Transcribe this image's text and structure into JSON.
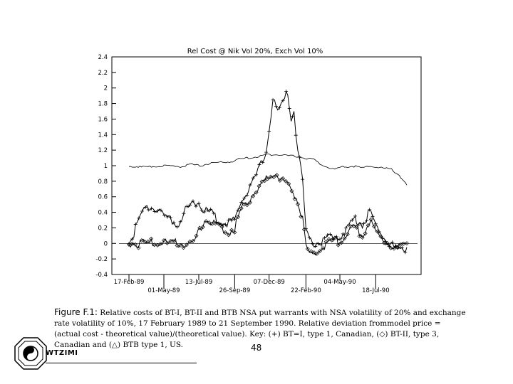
{
  "chart_data": {
    "type": "line",
    "title": "Rel Cost @ Nik Vol 20%, Exch Vol 10%",
    "ylim": [
      -0.4,
      2.4
    ],
    "yticks": [
      "2.4",
      "2.2",
      "2",
      "1.8",
      "1.6",
      "1.4",
      "1.2",
      "1",
      "0.8",
      "0.6",
      "0.4",
      "0.2",
      "0",
      "-0.2",
      "-0.4"
    ],
    "ytick_values": [
      2.4,
      2.2,
      2.0,
      1.8,
      1.6,
      1.4,
      1.2,
      1.0,
      0.8,
      0.6,
      0.4,
      0.2,
      0.0,
      -0.2,
      -0.4
    ],
    "xlim": [
      "1989-02-17",
      "1990-09-21"
    ],
    "xticks_upper": [
      "17-Feb-89",
      "13-Jul-89",
      "07-Dec-89",
      "04-May-90"
    ],
    "xtick_upper_dates": [
      "1989-02-17",
      "1989-07-13",
      "1989-12-07",
      "1990-05-04"
    ],
    "xticks_lower": [
      "01-May-89",
      "26-Sep-89",
      "22-Feb-90",
      "18-Jul-90"
    ],
    "xtick_lower_dates": [
      "1989-05-01",
      "1989-09-26",
      "1990-02-22",
      "1990-07-18"
    ],
    "series": [
      {
        "marker": "plus",
        "x": [
          "1989-02-17",
          "1989-03-20",
          "1989-04-05",
          "1989-04-25",
          "1989-05-15",
          "1989-06-01",
          "1989-06-15",
          "1989-07-01",
          "1989-07-13",
          "1989-07-25",
          "1989-08-10",
          "1989-08-25",
          "1989-09-10",
          "1989-09-26",
          "1989-10-10",
          "1989-10-25",
          "1989-11-10",
          "1989-11-20",
          "1989-12-01",
          "1989-12-07",
          "1989-12-15",
          "1989-12-25",
          "1990-01-05",
          "1990-01-15",
          "1990-01-22",
          "1990-01-28",
          "1990-02-05",
          "1990-02-15",
          "1990-02-22",
          "1990-03-05",
          "1990-03-20",
          "1990-04-05",
          "1990-04-20",
          "1990-05-04",
          "1990-05-20",
          "1990-06-05",
          "1990-06-20",
          "1990-07-05",
          "1990-07-18",
          "1990-08-01",
          "1990-08-15",
          "1990-09-01",
          "1990-09-21"
        ],
        "values": [
          0.0,
          0.42,
          0.47,
          0.4,
          0.28,
          0.25,
          0.43,
          0.5,
          0.55,
          0.42,
          0.38,
          0.3,
          0.25,
          0.3,
          0.55,
          0.7,
          0.85,
          1.05,
          1.2,
          1.5,
          1.85,
          1.7,
          1.8,
          1.95,
          1.6,
          1.7,
          1.2,
          0.8,
          0.15,
          0.0,
          0.02,
          0.05,
          0.1,
          0.08,
          0.2,
          0.3,
          0.25,
          0.4,
          0.25,
          0.1,
          0.0,
          -0.1,
          -0.05
        ]
      },
      {
        "marker": "line",
        "x": [
          "1989-02-17",
          "1989-03-15",
          "1989-04-05",
          "1989-04-25",
          "1989-05-15",
          "1989-06-05",
          "1989-06-25",
          "1989-07-15",
          "1989-08-05",
          "1989-08-25",
          "1989-09-15",
          "1989-10-05",
          "1989-10-25",
          "1989-11-15",
          "1989-12-05",
          "1989-12-25",
          "1990-01-10",
          "1990-01-30",
          "1990-02-20",
          "1990-03-10",
          "1990-03-30",
          "1990-04-20",
          "1990-05-10",
          "1990-05-30",
          "1990-06-20",
          "1990-07-10",
          "1990-07-30",
          "1990-08-20",
          "1990-09-05",
          "1990-09-21"
        ],
        "values": [
          1.0,
          0.98,
          0.99,
          1.0,
          1.0,
          0.99,
          1.02,
          1.0,
          1.03,
          1.04,
          1.05,
          1.08,
          1.1,
          1.12,
          1.14,
          1.15,
          1.13,
          1.12,
          1.1,
          1.08,
          1.0,
          0.95,
          0.98,
          1.0,
          0.97,
          1.0,
          0.97,
          0.95,
          0.88,
          0.75
        ]
      },
      {
        "marker": "diamond",
        "x": [
          "1989-02-17",
          "1989-05-01",
          "1989-06-01",
          "1989-07-01",
          "1989-07-25",
          "1989-08-20",
          "1989-09-10",
          "1989-09-26",
          "1989-10-10",
          "1989-10-25",
          "1989-11-10",
          "1989-11-25",
          "1989-12-07",
          "1989-12-20",
          "1990-01-05",
          "1990-01-20",
          "1990-02-05",
          "1990-02-15",
          "1990-02-22",
          "1990-03-05",
          "1990-03-20",
          "1990-04-05",
          "1990-04-20",
          "1990-05-04",
          "1990-05-20",
          "1990-06-05",
          "1990-06-20",
          "1990-07-05",
          "1990-07-18",
          "1990-08-01",
          "1990-08-15",
          "1990-09-01",
          "1990-09-21"
        ],
        "values": [
          0.0,
          0.0,
          0.0,
          0.0,
          0.3,
          0.22,
          0.15,
          0.2,
          0.45,
          0.55,
          0.7,
          0.78,
          0.85,
          0.9,
          0.8,
          0.72,
          0.55,
          0.3,
          -0.05,
          -0.15,
          -0.1,
          0.0,
          0.05,
          0.02,
          0.15,
          0.2,
          0.1,
          0.3,
          0.15,
          0.05,
          0.0,
          -0.05,
          0.0
        ]
      }
    ]
  },
  "caption": {
    "label": "Figure F.1:",
    "text": "Relative costs of BT-I, BT-II and BTB NSA put warrants with NSA volatility of 20% and exchange rate volatility of 10%, 17 February 1989 to 21 September 1990. Relative deviation frommodel price = (actual cost - theoretical value)/(theoretical value). Key: (+) BT=I, type 1, Canadian, (◇) BT-II, type 3, Canadian and (△) BTB type 1, US."
  },
  "page_number": "48",
  "logo_text": "WTZIMI"
}
